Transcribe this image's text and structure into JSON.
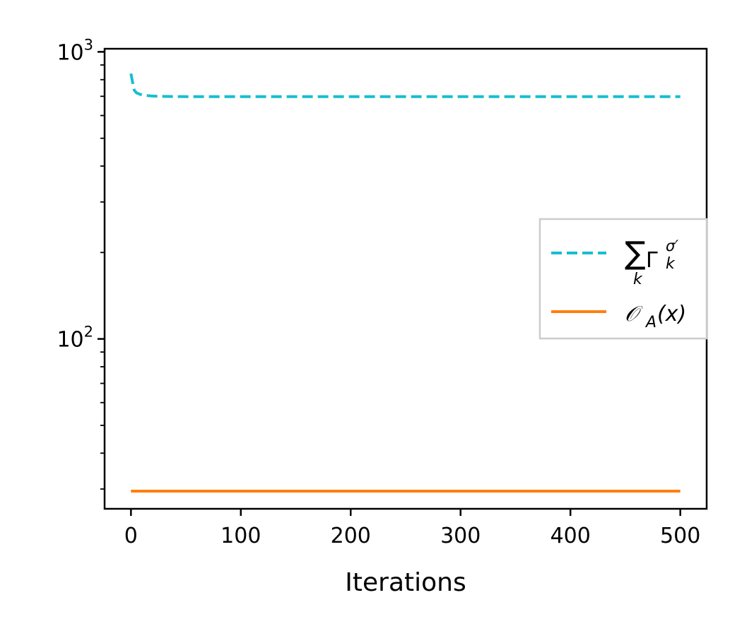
{
  "chart_data": {
    "type": "line",
    "title": "",
    "xlabel": "Iterations",
    "ylabel": "",
    "xlim": [
      -24,
      524
    ],
    "ylim": [
      25.6,
      1025
    ],
    "yscale": "log",
    "grid": false,
    "legend_position": "center-right",
    "x_ticks": [
      0,
      100,
      200,
      300,
      400,
      500
    ],
    "x_tick_labels": [
      "0",
      "100",
      "200",
      "300",
      "400",
      "500"
    ],
    "y_ticks": [
      100,
      1000
    ],
    "y_tick_labels": [
      {
        "base": "10",
        "exp": "2"
      },
      {
        "base": "10",
        "exp": "3"
      }
    ],
    "series": [
      {
        "name": "∑_k Γ_k^σ′",
        "legend_parts": {
          "sum": "∑",
          "sum_sub": "k",
          "symbol": "Γ",
          "sup": "σ′",
          "sub": "k"
        },
        "color": "#17becf",
        "style": "dashed",
        "x": [
          0,
          1,
          3,
          5,
          8,
          12,
          18,
          25,
          35,
          50,
          100,
          200,
          300,
          400,
          500
        ],
        "y": [
          840,
          800,
          735,
          720,
          712,
          706,
          702,
          700,
          699,
          698,
          698,
          698,
          698,
          698,
          698
        ]
      },
      {
        "name": "𝒪_A(x)",
        "legend_parts": {
          "symbol": "𝒪",
          "sub": "A",
          "arg": "(x)"
        },
        "color": "#ff7f0e",
        "style": "solid",
        "x": [
          0,
          500
        ],
        "y": [
          29.5,
          29.5
        ]
      }
    ]
  }
}
